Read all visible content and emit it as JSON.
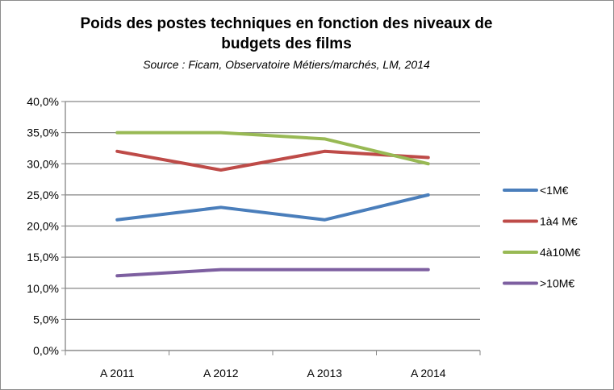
{
  "chart_data": {
    "type": "line",
    "title_line1": "Poids des postes techniques en fonction des niveaux de",
    "title_line2": "budgets des films",
    "subtitle": "Source : Ficam, Observatoire Métiers/marchés, LM, 2014",
    "categories": [
      "A 2011",
      "A 2012",
      "A 2013",
      "A 2014"
    ],
    "y_tick_labels": [
      "0,0%",
      "5,0%",
      "10,0%",
      "15,0%",
      "20,0%",
      "25,0%",
      "30,0%",
      "35,0%",
      "40,0%"
    ],
    "ylim": [
      0,
      40
    ],
    "ystep": 5,
    "grid": true,
    "legend_position": "right",
    "series": [
      {
        "name": "<1M€",
        "color": "#4a7ebb",
        "values": [
          21,
          23,
          21,
          25
        ]
      },
      {
        "name": "1à4 M€",
        "color": "#be4b48",
        "values": [
          32,
          29,
          32,
          31
        ]
      },
      {
        "name": "4à10M€",
        "color": "#98b954",
        "values": [
          35,
          35,
          34,
          30
        ]
      },
      {
        "name": ">10M€",
        "color": "#7d5fa0",
        "values": [
          12,
          13,
          13,
          13
        ]
      }
    ]
  }
}
